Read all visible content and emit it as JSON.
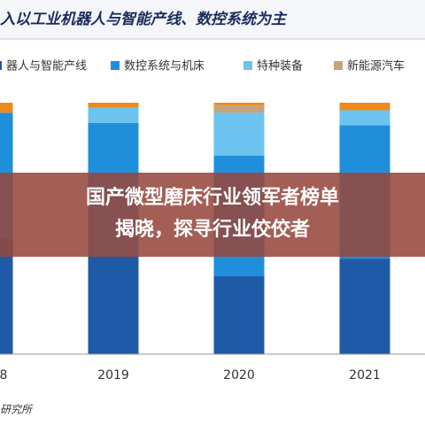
{
  "chart_data": {
    "type": "stacked-bar",
    "title": "入以工业机器人与智能产线、数控系统为主",
    "categories": [
      "8",
      "2019",
      "2020",
      "2021"
    ],
    "series": [
      {
        "name": "器人与智能产线",
        "color": "#1f5aa6",
        "values": [
          46,
          39,
          31,
          38
        ]
      },
      {
        "name": "数控系统与机床",
        "color": "#1f8fdc",
        "values": [
          50,
          53,
          48,
          53
        ]
      },
      {
        "name": "特种装备",
        "color": "#6cc3ef",
        "values": [
          0,
          6,
          17,
          6
        ]
      },
      {
        "name": "新能源汽车",
        "color": "#c4a47a",
        "values": [
          0,
          0,
          3,
          0
        ]
      },
      {
        "color": "#f0891c",
        "values": [
          4,
          2,
          1,
          3
        ]
      }
    ],
    "ylim": [
      0,
      100
    ],
    "source": "研究所",
    "overlay": [
      "国产微型磨床行业领军者榜单",
      "揭晓，探寻行业佼佼者"
    ]
  }
}
